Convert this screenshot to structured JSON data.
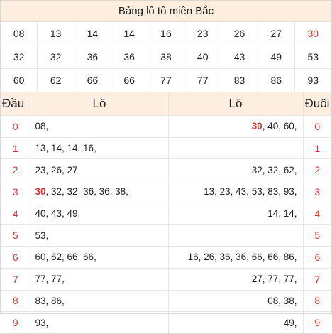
{
  "title": "Bảng lô tô miền Bắc",
  "numbers": [
    "08",
    "13",
    "14",
    "14",
    "16",
    "23",
    "26",
    "27",
    "30",
    "32",
    "32",
    "36",
    "36",
    "38",
    "40",
    "43",
    "49",
    "53",
    "60",
    "62",
    "66",
    "66",
    "77",
    "77",
    "83",
    "86",
    "93"
  ],
  "headers": {
    "dau": "Đầu",
    "lo_left": "Lô",
    "lo_right": "Lô",
    "duoi": "Đuôi"
  },
  "rows": [
    {
      "digit": "0",
      "left": "08,",
      "right": "30, 40, 60,"
    },
    {
      "digit": "1",
      "left": "13, 14, 14, 16,",
      "right": ""
    },
    {
      "digit": "2",
      "left": "23, 26, 27,",
      "right": "32, 32, 62,"
    },
    {
      "digit": "3",
      "left": "30, 32, 32, 36, 36, 38,",
      "right": "13, 23, 43, 53, 83, 93,"
    },
    {
      "digit": "4",
      "left": "40, 43, 49,",
      "right": "14, 14,"
    },
    {
      "digit": "5",
      "left": "53,",
      "right": ""
    },
    {
      "digit": "6",
      "left": "60, 62, 66, 66,",
      "right": "16, 26, 36, 36, 66, 66, 86,"
    },
    {
      "digit": "7",
      "left": "77, 77,",
      "right": "27, 77, 77,"
    },
    {
      "digit": "8",
      "left": "83, 86,",
      "right": "08, 38,"
    },
    {
      "digit": "9",
      "left": "93,",
      "right": "49,"
    }
  ],
  "highlight": "30",
  "colors": {
    "header_bg": "#fdeee0",
    "accent": "#d9342b",
    "border": "#e6e6e6"
  }
}
